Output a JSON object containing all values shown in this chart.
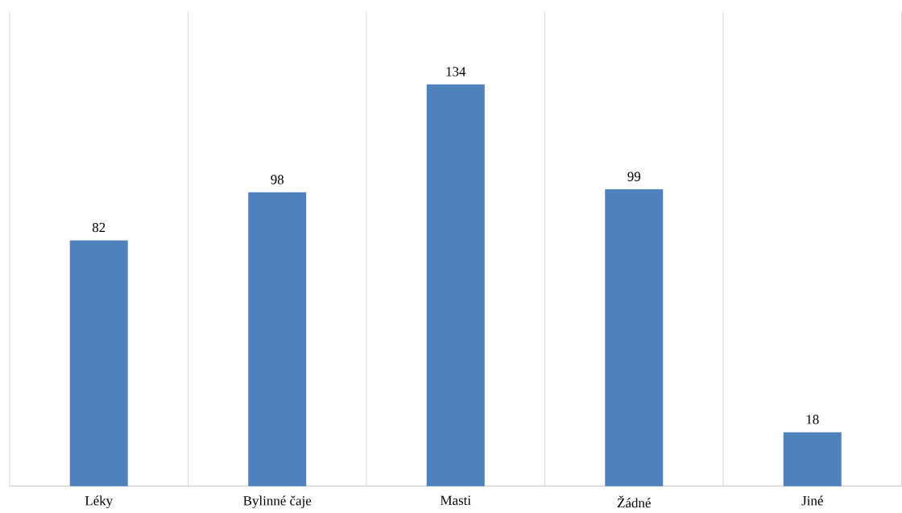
{
  "chart_data": {
    "type": "bar",
    "categories": [
      "Léky",
      "Bylinné čaje",
      "Masti",
      "Žádné",
      "Jiné"
    ],
    "values": [
      82,
      98,
      134,
      99,
      18
    ],
    "color": "#4f81bd",
    "data_labels": true,
    "grid": "x"
  }
}
